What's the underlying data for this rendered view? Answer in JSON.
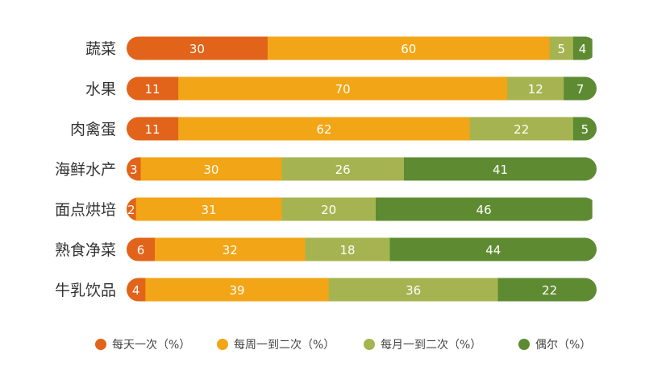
{
  "chart_data": {
    "type": "bar",
    "orientation": "horizontal",
    "stacked": true,
    "categories": [
      "蔬菜",
      "水果",
      "肉禽蛋",
      "海鲜水产",
      "面点烘培",
      "熟食净菜",
      "牛乳饮品"
    ],
    "series": [
      {
        "name": "每天一次（%）",
        "color": "#E2631A",
        "values": [
          30,
          11,
          11,
          3,
          2,
          6,
          4
        ]
      },
      {
        "name": "每周一到二次（%）",
        "color": "#F2A516",
        "values": [
          60,
          70,
          62,
          30,
          31,
          32,
          39
        ]
      },
      {
        "name": "每月一到二次（%）",
        "color": "#A5B450",
        "values": [
          5,
          12,
          22,
          26,
          20,
          18,
          36
        ]
      },
      {
        "name": "偶尔（%）",
        "color": "#5E8B32",
        "values": [
          4,
          7,
          5,
          41,
          46,
          44,
          22
        ]
      }
    ],
    "xlim": [
      0,
      100
    ],
    "legend_position": "bottom",
    "grid": false
  }
}
